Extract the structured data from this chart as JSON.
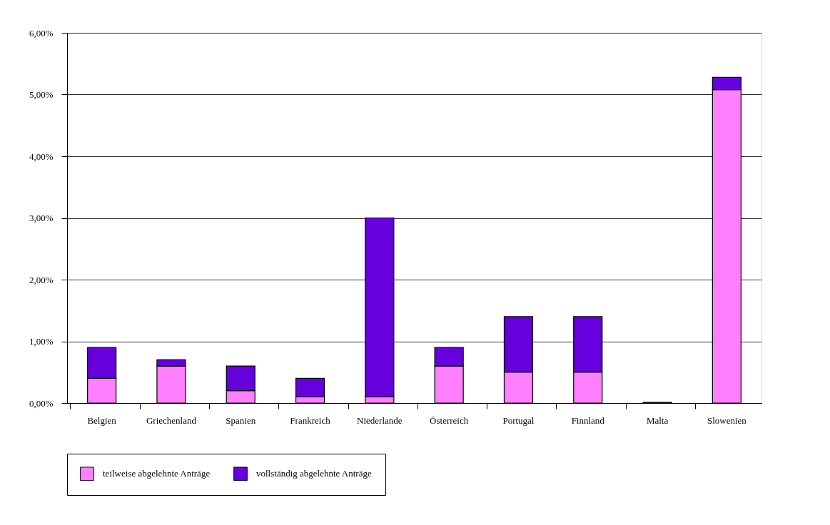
{
  "chart_data": {
    "type": "bar",
    "stacked": true,
    "categories": [
      "Belgien",
      "Griechenland",
      "Spanien",
      "Frankreich",
      "Niederlande",
      "Österreich",
      "Portugal",
      "Finnland",
      "Malta",
      "Slowenien"
    ],
    "series": [
      {
        "name": "teilweise abgelehnte Anträge",
        "color": "#ff80ff",
        "values": [
          0.4,
          0.6,
          0.2,
          0.1,
          0.1,
          0.6,
          0.5,
          0.5,
          0,
          5.08
        ]
      },
      {
        "name": "vollständig abgelehnte Anträge",
        "color": "#6600dd",
        "values": [
          0.5,
          0.1,
          0.4,
          0.3,
          2.9,
          0.3,
          0.9,
          0.9,
          0.01,
          0.2
        ]
      }
    ],
    "ylim": [
      0,
      6
    ],
    "yticks": [
      {
        "value": 0,
        "label": "0,00%"
      },
      {
        "value": 1,
        "label": "1,00%"
      },
      {
        "value": 2,
        "label": "2,00%"
      },
      {
        "value": 3,
        "label": "3,00%"
      },
      {
        "value": 4,
        "label": "4,00%"
      },
      {
        "value": 5,
        "label": "5,00%"
      },
      {
        "value": 6,
        "label": "6,00%"
      }
    ],
    "grid": "y",
    "legend": "bottom"
  }
}
